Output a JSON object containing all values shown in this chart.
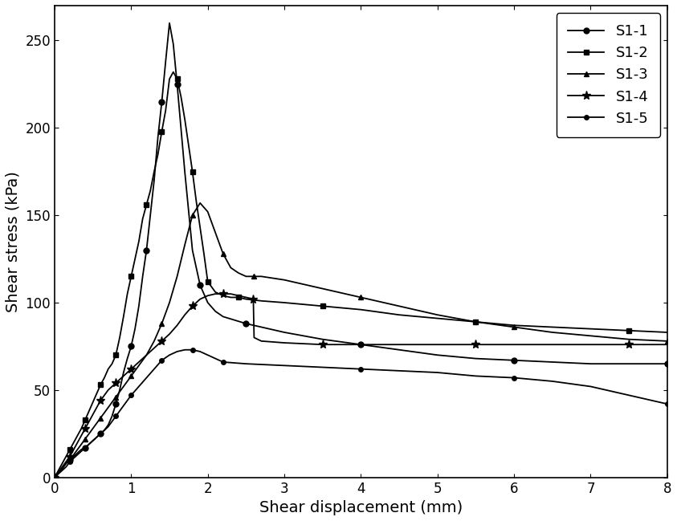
{
  "title": "",
  "xlabel": "Shear displacement (mm)",
  "ylabel": "Shear stress (kPa)",
  "xlim": [
    0,
    8
  ],
  "ylim": [
    0,
    270
  ],
  "yticks": [
    0,
    50,
    100,
    150,
    200,
    250
  ],
  "xticks": [
    0,
    1,
    2,
    3,
    4,
    5,
    6,
    7,
    8
  ],
  "series": [
    {
      "label": "S1-1",
      "marker": "o",
      "markersize": 5,
      "color": "#000000",
      "x": [
        0,
        0.05,
        0.1,
        0.15,
        0.2,
        0.25,
        0.3,
        0.35,
        0.4,
        0.45,
        0.5,
        0.55,
        0.6,
        0.65,
        0.7,
        0.75,
        0.8,
        0.85,
        0.9,
        0.95,
        1.0,
        1.05,
        1.1,
        1.15,
        1.2,
        1.25,
        1.3,
        1.35,
        1.4,
        1.45,
        1.5,
        1.55,
        1.6,
        1.65,
        1.7,
        1.8,
        1.9,
        2.0,
        2.1,
        2.2,
        2.5,
        2.8,
        3.0,
        3.5,
        4.0,
        4.5,
        5.0,
        5.5,
        6.0,
        6.5,
        7.0,
        7.5,
        8.0
      ],
      "y": [
        0,
        3,
        5,
        8,
        10,
        12,
        14,
        16,
        17,
        19,
        21,
        23,
        25,
        27,
        30,
        35,
        42,
        50,
        60,
        68,
        75,
        85,
        98,
        115,
        130,
        150,
        170,
        195,
        215,
        238,
        260,
        248,
        225,
        200,
        175,
        130,
        110,
        100,
        95,
        92,
        88,
        85,
        83,
        79,
        76,
        73,
        70,
        68,
        67,
        66,
        65,
        65,
        65
      ]
    },
    {
      "label": "S1-2",
      "marker": "s",
      "markersize": 5,
      "color": "#000000",
      "x": [
        0,
        0.05,
        0.1,
        0.15,
        0.2,
        0.25,
        0.3,
        0.35,
        0.4,
        0.45,
        0.5,
        0.55,
        0.6,
        0.65,
        0.7,
        0.75,
        0.8,
        0.85,
        0.9,
        0.95,
        1.0,
        1.05,
        1.1,
        1.15,
        1.2,
        1.25,
        1.3,
        1.35,
        1.4,
        1.45,
        1.5,
        1.55,
        1.6,
        1.65,
        1.7,
        1.75,
        1.8,
        1.85,
        1.9,
        1.95,
        2.0,
        2.1,
        2.2,
        2.3,
        2.4,
        2.5,
        2.7,
        3.0,
        3.5,
        4.0,
        4.5,
        5.0,
        5.5,
        6.0,
        6.5,
        7.0,
        7.5,
        8.0
      ],
      "y": [
        0,
        4,
        8,
        12,
        16,
        20,
        24,
        28,
        33,
        38,
        43,
        48,
        53,
        57,
        62,
        65,
        70,
        80,
        92,
        105,
        115,
        125,
        135,
        148,
        156,
        164,
        175,
        185,
        198,
        210,
        228,
        232,
        228,
        218,
        205,
        190,
        175,
        158,
        143,
        128,
        112,
        106,
        104,
        103,
        103,
        102,
        101,
        100,
        98,
        96,
        93,
        91,
        89,
        87,
        86,
        85,
        84,
        83
      ]
    },
    {
      "label": "S1-3",
      "marker": "^",
      "markersize": 5,
      "color": "#000000",
      "x": [
        0,
        0.05,
        0.1,
        0.15,
        0.2,
        0.25,
        0.3,
        0.35,
        0.4,
        0.45,
        0.5,
        0.55,
        0.6,
        0.65,
        0.7,
        0.75,
        0.8,
        0.85,
        0.9,
        0.95,
        1.0,
        1.1,
        1.2,
        1.3,
        1.4,
        1.5,
        1.6,
        1.7,
        1.8,
        1.9,
        2.0,
        2.1,
        2.2,
        2.3,
        2.4,
        2.5,
        2.6,
        2.7,
        3.0,
        3.5,
        4.0,
        4.5,
        5.0,
        5.5,
        6.0,
        6.5,
        7.0,
        7.5,
        8.0
      ],
      "y": [
        0,
        3,
        5,
        8,
        10,
        13,
        16,
        19,
        22,
        25,
        28,
        31,
        34,
        37,
        40,
        43,
        46,
        49,
        52,
        55,
        58,
        64,
        70,
        78,
        88,
        100,
        115,
        133,
        150,
        157,
        152,
        140,
        128,
        120,
        117,
        115,
        115,
        115,
        113,
        108,
        103,
        98,
        93,
        89,
        86,
        83,
        81,
        79,
        78
      ]
    },
    {
      "label": "S1-4",
      "marker": "*",
      "markersize": 7,
      "color": "#000000",
      "x": [
        0,
        0.05,
        0.1,
        0.15,
        0.2,
        0.25,
        0.3,
        0.35,
        0.4,
        0.45,
        0.5,
        0.55,
        0.6,
        0.65,
        0.7,
        0.75,
        0.8,
        0.85,
        0.9,
        0.95,
        1.0,
        1.1,
        1.2,
        1.3,
        1.4,
        1.5,
        1.6,
        1.7,
        1.8,
        1.9,
        2.0,
        2.1,
        2.2,
        2.3,
        2.4,
        2.5,
        2.595,
        2.605,
        2.7,
        3.0,
        3.5,
        4.0,
        4.5,
        5.0,
        5.5,
        6.0,
        6.5,
        7.0,
        7.5,
        8.0
      ],
      "y": [
        0,
        3,
        6,
        9,
        12,
        16,
        20,
        24,
        28,
        32,
        36,
        40,
        44,
        47,
        50,
        52,
        54,
        56,
        58,
        60,
        62,
        66,
        70,
        74,
        78,
        82,
        87,
        93,
        98,
        102,
        104,
        105,
        105,
        105,
        104,
        103,
        102,
        80,
        78,
        77,
        76,
        76,
        76,
        76,
        76,
        76,
        76,
        76,
        76,
        76
      ]
    },
    {
      "label": "S1-5",
      "marker": "o",
      "markersize": 4,
      "color": "#000000",
      "x": [
        0,
        0.05,
        0.1,
        0.15,
        0.2,
        0.25,
        0.3,
        0.35,
        0.4,
        0.45,
        0.5,
        0.55,
        0.6,
        0.65,
        0.7,
        0.75,
        0.8,
        0.85,
        0.9,
        0.95,
        1.0,
        1.1,
        1.2,
        1.3,
        1.4,
        1.5,
        1.6,
        1.7,
        1.8,
        1.9,
        2.0,
        2.1,
        2.2,
        2.5,
        3.0,
        3.5,
        4.0,
        4.5,
        5.0,
        5.5,
        6.0,
        6.5,
        7.0,
        7.5,
        8.0
      ],
      "y": [
        0,
        2,
        4,
        6,
        9,
        11,
        13,
        15,
        17,
        19,
        21,
        23,
        25,
        27,
        29,
        32,
        35,
        38,
        41,
        44,
        47,
        52,
        57,
        62,
        67,
        70,
        72,
        73,
        73,
        72,
        70,
        68,
        66,
        65,
        64,
        63,
        62,
        61,
        60,
        58,
        57,
        55,
        52,
        47,
        42
      ]
    }
  ],
  "legend_loc": "upper right",
  "figsize": [
    8.43,
    6.49
  ],
  "dpi": 100,
  "background_color": "#ffffff"
}
